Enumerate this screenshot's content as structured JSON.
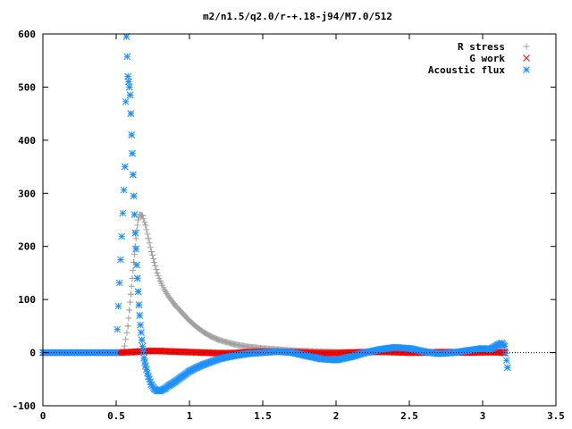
{
  "chart_data": {
    "type": "scatter",
    "title": "m2/n1.5/q2.0/r-+.18-j94/M7.0/512",
    "xlabel": "",
    "ylabel": "",
    "xlim": [
      0,
      3.5
    ],
    "ylim": [
      -100,
      600
    ],
    "x_ticks": [
      0,
      0.5,
      1,
      1.5,
      2,
      2.5,
      3,
      3.5
    ],
    "x_tick_labels": [
      "0",
      "0.5",
      "1",
      "1.5",
      "2",
      "2.5",
      "3",
      "3.5"
    ],
    "y_ticks": [
      -100,
      0,
      100,
      200,
      300,
      400,
      500,
      600
    ],
    "y_tick_labels": [
      "-100",
      "0",
      "100",
      "200",
      "300",
      "400",
      "500",
      "600"
    ],
    "grid": false,
    "legend_position": "top-right",
    "series": [
      {
        "name": "R stress",
        "marker": "plus",
        "color": "#a0a0a0",
        "x": [
          0.0,
          0.1,
          0.2,
          0.3,
          0.4,
          0.5,
          0.55,
          0.58,
          0.59,
          0.6,
          0.61,
          0.62,
          0.63,
          0.64,
          0.65,
          0.66,
          0.68,
          0.7,
          0.72,
          0.74,
          0.76,
          0.78,
          0.8,
          0.83,
          0.86,
          0.9,
          0.95,
          1.0,
          1.05,
          1.1,
          1.15,
          1.2,
          1.3,
          1.4,
          1.5,
          1.6,
          1.7,
          1.8,
          1.9,
          2.0,
          2.2,
          2.5,
          2.8,
          3.0,
          3.15
        ],
        "y": [
          0,
          0,
          0,
          0,
          0,
          0,
          0,
          50,
          80,
          110,
          140,
          170,
          200,
          230,
          250,
          260,
          258,
          240,
          215,
          190,
          170,
          150,
          135,
          118,
          105,
          90,
          75,
          60,
          48,
          38,
          30,
          24,
          16,
          11,
          8,
          6,
          4,
          3,
          2,
          1,
          1,
          0,
          0,
          0,
          0
        ]
      },
      {
        "name": "G work",
        "marker": "cross",
        "color": "#ff0000",
        "x": [
          0.0,
          0.1,
          0.2,
          0.3,
          0.4,
          0.5,
          0.6,
          0.7,
          0.8,
          0.9,
          1.0,
          1.1,
          1.2,
          1.3,
          1.4,
          1.5,
          1.6,
          1.7,
          1.8,
          1.9,
          2.0,
          2.1,
          2.2,
          2.3,
          2.4,
          2.5,
          2.6,
          2.7,
          2.8,
          2.9,
          3.0,
          3.1,
          3.15
        ],
        "y": [
          0,
          0,
          0,
          0,
          0,
          0,
          1,
          3,
          3,
          2,
          1,
          0,
          -1,
          -1,
          1,
          2,
          2,
          1,
          0,
          -1,
          -1,
          0,
          1,
          2,
          1,
          0,
          0,
          1,
          1,
          0,
          1,
          1,
          0
        ]
      },
      {
        "name": "Acoustic flux",
        "marker": "star",
        "color": "#1e90ff",
        "x": [
          0.0,
          0.1,
          0.2,
          0.3,
          0.4,
          0.5,
          0.56,
          0.57,
          0.58,
          0.585,
          0.59,
          0.595,
          0.6,
          0.605,
          0.61,
          0.615,
          0.62,
          0.625,
          0.63,
          0.635,
          0.64,
          0.645,
          0.65,
          0.655,
          0.66,
          0.665,
          0.67,
          0.675,
          0.68,
          0.685,
          0.69,
          0.7,
          0.72,
          0.74,
          0.76,
          0.78,
          0.8,
          0.83,
          0.86,
          0.9,
          0.95,
          1.0,
          1.05,
          1.1,
          1.2,
          1.3,
          1.4,
          1.5,
          1.6,
          1.7,
          1.8,
          1.9,
          2.0,
          2.1,
          2.2,
          2.3,
          2.4,
          2.5,
          2.6,
          2.7,
          2.8,
          2.9,
          3.0,
          3.05,
          3.1,
          3.13,
          3.15,
          3.17
        ],
        "y": [
          0,
          0,
          0,
          0,
          0,
          0,
          350,
          595,
          520,
          510,
          500,
          485,
          450,
          410,
          375,
          335,
          295,
          260,
          225,
          195,
          165,
          140,
          115,
          90,
          70,
          52,
          38,
          24,
          12,
          2,
          -10,
          -25,
          -45,
          -60,
          -68,
          -72,
          -72,
          -68,
          -62,
          -55,
          -45,
          -35,
          -28,
          -22,
          -12,
          -6,
          -2,
          0,
          2,
          0,
          -6,
          -12,
          -14,
          -8,
          0,
          6,
          10,
          8,
          2,
          -2,
          0,
          4,
          8,
          6,
          14,
          18,
          12,
          -28
        ]
      }
    ]
  }
}
